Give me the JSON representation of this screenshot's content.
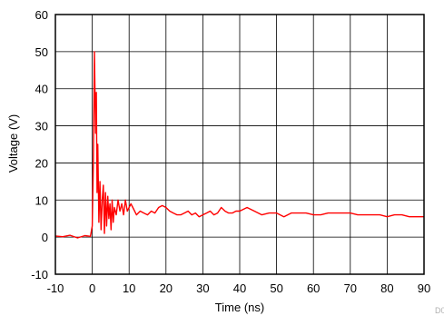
{
  "chart_data": {
    "type": "line",
    "xlabel": "Time (ns)",
    "ylabel": "Voltage (V)",
    "xlim": [
      -10,
      90
    ],
    "ylim": [
      -10,
      60
    ],
    "xticks": [
      -10,
      0,
      10,
      20,
      30,
      40,
      50,
      60,
      70,
      80,
      90
    ],
    "yticks": [
      -10,
      0,
      10,
      20,
      30,
      40,
      50,
      60
    ],
    "grid": true,
    "legend": "none",
    "series_color": "#ff0000",
    "figure_id": "D003",
    "series": [
      {
        "x": [
          -10,
          -8,
          -6,
          -4,
          -2,
          -0.5,
          0,
          0.3,
          0.6,
          0.9,
          1.1,
          1.3,
          1.5,
          1.8,
          2.1,
          2.4,
          2.7,
          3,
          3.3,
          3.6,
          3.9,
          4.2,
          4.5,
          4.8,
          5.1,
          5.4,
          5.7,
          6,
          6.5,
          7,
          7.5,
          8,
          8.5,
          9,
          9.5,
          10,
          10.5,
          11,
          12,
          13,
          14,
          15,
          16,
          17,
          18,
          19,
          20,
          21,
          22,
          23,
          24,
          25,
          26,
          27,
          28,
          29,
          30,
          31,
          32,
          33,
          34,
          35,
          36,
          37,
          38,
          39,
          40,
          42,
          44,
          46,
          48,
          50,
          52,
          54,
          56,
          58,
          60,
          62,
          64,
          66,
          68,
          70,
          72,
          74,
          76,
          78,
          80,
          82,
          84,
          86,
          88,
          90
        ],
        "y": [
          0.3,
          0.1,
          0.5,
          -0.2,
          0.4,
          0.2,
          3,
          20,
          50,
          28,
          39,
          12,
          25,
          4,
          15,
          2,
          10,
          14,
          1,
          12,
          3,
          11,
          5,
          9,
          2,
          10,
          4,
          8,
          6,
          10,
          7,
          9,
          6,
          10,
          7,
          8,
          9,
          8,
          6,
          7,
          6.5,
          6,
          7,
          6.5,
          8,
          8.5,
          8,
          7,
          6.5,
          6,
          6,
          6.5,
          7,
          6,
          6.5,
          5.5,
          6,
          6.5,
          7,
          6,
          6.5,
          8,
          7,
          6.5,
          6.5,
          7,
          7,
          8,
          7,
          6,
          6.5,
          6.5,
          5.5,
          6.5,
          6.5,
          6.5,
          6,
          6,
          6.5,
          6.5,
          6.5,
          6.5,
          6,
          6,
          6,
          6,
          5.5,
          6,
          6,
          5.5,
          5.5,
          5.5
        ]
      }
    ]
  }
}
